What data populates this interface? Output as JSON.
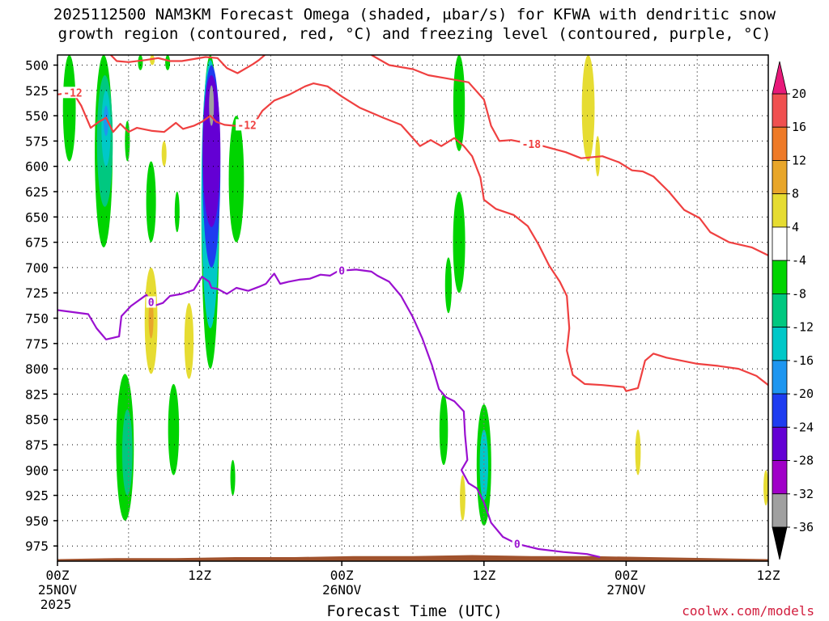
{
  "title": {
    "line1": "2025112500 NAM3KM Forecast Omega (shaded, μbar/s) for KFWA with dendritic snow",
    "line2": "growth region (contoured, red, °C) and freezing level (contoured, purple, °C)"
  },
  "xlabel": "Forecast Time (UTC)",
  "credit": "coolwx.com/models",
  "chart_data": {
    "type": "time-height contour",
    "title": "2025112500 NAM3KM Forecast Omega (shaded, μbar/s) for KFWA with dendritic snow growth region (contoured, red, °C) and freezing level (contoured, purple, °C)",
    "xlabel": "Forecast Time (UTC)",
    "ylabel": "",
    "x_range_hours": [
      0,
      60
    ],
    "y_range_mb": [
      990,
      490
    ],
    "y_axis": "pressure (inverted)",
    "grid": true,
    "y_ticks": [
      500,
      525,
      550,
      575,
      600,
      625,
      650,
      675,
      700,
      725,
      750,
      775,
      800,
      825,
      850,
      875,
      900,
      925,
      950,
      975
    ],
    "x_ticks": [
      {
        "hour": 0,
        "label": "00Z",
        "sub1": "25NOV",
        "sub2": "2025"
      },
      {
        "hour": 12,
        "label": "12Z",
        "sub1": "",
        "sub2": ""
      },
      {
        "hour": 24,
        "label": "00Z",
        "sub1": "26NOV",
        "sub2": ""
      },
      {
        "hour": 36,
        "label": "12Z",
        "sub1": "",
        "sub2": ""
      },
      {
        "hour": 48,
        "label": "00Z",
        "sub1": "27NOV",
        "sub2": ""
      },
      {
        "hour": 60,
        "label": "12Z",
        "sub1": "",
        "sub2": ""
      }
    ],
    "colorbar": {
      "labels": [
        "20",
        "16",
        "12",
        "8",
        "4",
        "-4",
        "-8",
        "-12",
        "-16",
        "-20",
        "-24",
        "-28",
        "-32",
        "-36"
      ],
      "bins": [
        {
          "from": 20,
          "to": 24,
          "color": "#e8197a"
        },
        {
          "from": 16,
          "to": 20,
          "color": "#f05050"
        },
        {
          "from": 12,
          "to": 16,
          "color": "#ee7a28"
        },
        {
          "from": 8,
          "to": 12,
          "color": "#e8a62a"
        },
        {
          "from": 4,
          "to": 8,
          "color": "#e6dc32"
        },
        {
          "from": -4,
          "to": 4,
          "color": "#ffffff"
        },
        {
          "from": -8,
          "to": -4,
          "color": "#00d400"
        },
        {
          "from": -12,
          "to": -8,
          "color": "#00c880"
        },
        {
          "from": -16,
          "to": -12,
          "color": "#00c8c8"
        },
        {
          "from": -20,
          "to": -16,
          "color": "#1e96f0"
        },
        {
          "from": -24,
          "to": -20,
          "color": "#1e3cf0"
        },
        {
          "from": -28,
          "to": -24,
          "color": "#6400d4"
        },
        {
          "from": -32,
          "to": -28,
          "color": "#a000c8"
        },
        {
          "from": -36,
          "to": -32,
          "color": "#a0a0a0"
        },
        {
          "from": -40,
          "to": -36,
          "color": "#000000"
        }
      ]
    },
    "shaded_omega": [
      {
        "color": "#00d400",
        "hour": 1.0,
        "top": 490,
        "bottom": 595
      },
      {
        "color": "#00d400",
        "hour": 3.9,
        "top": 490,
        "bottom": 680
      },
      {
        "color": "#00c880",
        "hour": 4.0,
        "top": 510,
        "bottom": 640
      },
      {
        "color": "#00c8c8",
        "hour": 4.1,
        "top": 525,
        "bottom": 600
      },
      {
        "color": "#1e96f0",
        "hour": 4.1,
        "top": 540,
        "bottom": 570
      },
      {
        "color": "#00d400",
        "hour": 5.9,
        "top": 555,
        "bottom": 595
      },
      {
        "color": "#00d400",
        "hour": 7.0,
        "top": 490,
        "bottom": 505
      },
      {
        "color": "#00d400",
        "hour": 7.9,
        "top": 595,
        "bottom": 675
      },
      {
        "color": "#00d400",
        "hour": 9.3,
        "top": 490,
        "bottom": 505
      },
      {
        "color": "#e6dc32",
        "hour": 8.0,
        "top": 490,
        "bottom": 500
      },
      {
        "color": "#e6dc32",
        "hour": 9.0,
        "top": 575,
        "bottom": 600
      },
      {
        "color": "#00d400",
        "hour": 10.1,
        "top": 625,
        "bottom": 665
      },
      {
        "color": "#00d400",
        "hour": 12.9,
        "top": 490,
        "bottom": 800
      },
      {
        "color": "#00c8c8",
        "hour": 12.9,
        "top": 495,
        "bottom": 760
      },
      {
        "color": "#1e3cf0",
        "hour": 13.0,
        "top": 500,
        "bottom": 700
      },
      {
        "color": "#6400d4",
        "hour": 13.0,
        "top": 510,
        "bottom": 660
      },
      {
        "color": "#a0a0a0",
        "hour": 13.0,
        "top": 520,
        "bottom": 560
      },
      {
        "color": "#00d400",
        "hour": 15.1,
        "top": 550,
        "bottom": 675
      },
      {
        "color": "#00d400",
        "hour": 14.8,
        "top": 890,
        "bottom": 925
      },
      {
        "color": "#e6dc32",
        "hour": 7.9,
        "top": 700,
        "bottom": 805
      },
      {
        "color": "#e8a62a",
        "hour": 7.9,
        "top": 730,
        "bottom": 770
      },
      {
        "color": "#e6dc32",
        "hour": 11.1,
        "top": 735,
        "bottom": 810
      },
      {
        "color": "#00d400",
        "hour": 5.7,
        "top": 805,
        "bottom": 950
      },
      {
        "color": "#00c880",
        "hour": 5.9,
        "top": 840,
        "bottom": 925
      },
      {
        "color": "#00d400",
        "hour": 9.8,
        "top": 815,
        "bottom": 905
      },
      {
        "color": "#00d400",
        "hour": 32.6,
        "top": 825,
        "bottom": 895
      },
      {
        "color": "#00d400",
        "hour": 33.9,
        "top": 490,
        "bottom": 585
      },
      {
        "color": "#00d400",
        "hour": 33.9,
        "top": 625,
        "bottom": 725
      },
      {
        "color": "#00d400",
        "hour": 33.0,
        "top": 690,
        "bottom": 745
      },
      {
        "color": "#e6dc32",
        "hour": 34.2,
        "top": 905,
        "bottom": 950
      },
      {
        "color": "#00d400",
        "hour": 36.0,
        "top": 835,
        "bottom": 955
      },
      {
        "color": "#00c8c8",
        "hour": 36.0,
        "top": 860,
        "bottom": 930
      },
      {
        "color": "#e6dc32",
        "hour": 44.8,
        "top": 490,
        "bottom": 595
      },
      {
        "color": "#e6dc32",
        "hour": 45.6,
        "top": 570,
        "bottom": 610
      },
      {
        "color": "#e6dc32",
        "hour": 49.0,
        "top": 860,
        "bottom": 905
      },
      {
        "color": "#e6dc32",
        "hour": 59.8,
        "top": 900,
        "bottom": 935
      }
    ],
    "dgz_contours": [
      {
        "label": "-12",
        "color": "#ef4040",
        "points": [
          [
            0.0,
            529
          ],
          [
            1.3,
            527
          ],
          [
            2.0,
            540
          ],
          [
            2.8,
            562
          ],
          [
            3.5,
            556
          ],
          [
            4.1,
            552
          ],
          [
            4.7,
            566
          ],
          [
            5.3,
            558
          ],
          [
            6.0,
            566
          ],
          [
            6.7,
            562
          ],
          [
            8.0,
            565
          ],
          [
            9.0,
            566
          ],
          [
            10.0,
            557
          ],
          [
            10.6,
            563
          ],
          [
            11.5,
            560
          ],
          [
            12.2,
            556
          ],
          [
            12.9,
            550
          ],
          [
            13.4,
            556
          ],
          [
            14.1,
            559
          ],
          [
            15.0,
            560
          ],
          [
            16.0,
            559
          ],
          [
            16.7,
            556
          ],
          [
            17.3,
            545
          ],
          [
            18.3,
            535
          ],
          [
            19.6,
            529
          ],
          [
            20.9,
            521
          ],
          [
            21.6,
            518
          ],
          [
            22.8,
            521
          ],
          [
            24.0,
            531
          ],
          [
            25.5,
            542
          ],
          [
            27.5,
            552
          ],
          [
            29.0,
            559
          ],
          [
            30.6,
            580
          ],
          [
            31.5,
            574
          ],
          [
            32.4,
            580
          ],
          [
            33.5,
            572
          ],
          [
            34.3,
            580
          ],
          [
            35.0,
            590
          ],
          [
            35.7,
            611
          ],
          [
            36.0,
            633
          ],
          [
            37.0,
            642
          ],
          [
            38.5,
            648
          ],
          [
            39.7,
            659
          ],
          [
            40.6,
            677
          ],
          [
            41.5,
            698
          ],
          [
            42.4,
            714
          ],
          [
            43.0,
            728
          ],
          [
            43.2,
            760
          ],
          [
            43.0,
            782
          ],
          [
            43.5,
            806
          ],
          [
            44.5,
            815
          ],
          [
            46.0,
            816
          ],
          [
            47.8,
            818
          ],
          [
            48.0,
            822
          ],
          [
            49.0,
            819
          ],
          [
            49.2,
            810
          ],
          [
            49.6,
            792
          ],
          [
            50.3,
            785
          ],
          [
            51.4,
            789
          ],
          [
            54.0,
            795
          ],
          [
            55.7,
            797
          ],
          [
            57.5,
            800
          ],
          [
            59.0,
            807
          ],
          [
            60.0,
            816
          ]
        ]
      },
      {
        "label": "",
        "color": "#ef4040",
        "points": [
          [
            4.5,
            490
          ],
          [
            5.0,
            496
          ],
          [
            6.0,
            497
          ],
          [
            7.4,
            495
          ],
          [
            8.5,
            493
          ],
          [
            9.5,
            496
          ],
          [
            10.5,
            496
          ],
          [
            11.5,
            494
          ],
          [
            12.5,
            492
          ],
          [
            13.5,
            493
          ],
          [
            14.3,
            503
          ],
          [
            15.2,
            508
          ],
          [
            16.5,
            499
          ],
          [
            17.0,
            495
          ],
          [
            17.5,
            490
          ]
        ]
      },
      {
        "label": "-18",
        "color": "#ef4040",
        "points": [
          [
            26.5,
            490
          ],
          [
            28.0,
            500
          ],
          [
            30.0,
            504
          ],
          [
            31.3,
            510
          ],
          [
            32.8,
            513
          ],
          [
            34.7,
            517
          ],
          [
            36.0,
            534
          ],
          [
            36.6,
            560
          ],
          [
            37.3,
            575
          ],
          [
            38.3,
            574
          ],
          [
            40.0,
            578
          ],
          [
            41.0,
            580
          ],
          [
            42.9,
            586
          ],
          [
            44.2,
            592
          ],
          [
            46.0,
            590
          ],
          [
            47.4,
            596
          ],
          [
            48.5,
            604
          ],
          [
            49.4,
            605
          ],
          [
            50.3,
            610
          ],
          [
            51.6,
            625
          ],
          [
            52.9,
            643
          ],
          [
            54.2,
            651
          ],
          [
            55.1,
            665
          ],
          [
            56.7,
            675
          ],
          [
            58.6,
            680
          ],
          [
            60.0,
            688
          ]
        ]
      }
    ],
    "freezing_level": {
      "label": "0",
      "color": "#9a10d0",
      "points": [
        [
          0.0,
          742
        ],
        [
          1.3,
          744
        ],
        [
          2.6,
          746
        ],
        [
          3.3,
          760
        ],
        [
          4.1,
          771
        ],
        [
          5.2,
          768
        ],
        [
          5.4,
          748
        ],
        [
          6.2,
          738
        ],
        [
          7.5,
          727
        ],
        [
          8.1,
          738
        ],
        [
          8.9,
          735
        ],
        [
          9.5,
          728
        ],
        [
          10.5,
          726
        ],
        [
          11.5,
          722
        ],
        [
          12.2,
          709
        ],
        [
          12.8,
          714
        ],
        [
          13.0,
          720
        ],
        [
          13.5,
          721
        ],
        [
          14.3,
          726
        ],
        [
          15.1,
          720
        ],
        [
          16.1,
          723
        ],
        [
          17.0,
          719
        ],
        [
          17.6,
          716
        ],
        [
          18.0,
          710
        ],
        [
          18.3,
          706
        ],
        [
          18.8,
          716
        ],
        [
          19.5,
          714
        ],
        [
          20.4,
          712
        ],
        [
          21.3,
          711
        ],
        [
          22.2,
          707
        ],
        [
          23.0,
          708
        ],
        [
          23.6,
          704
        ],
        [
          24.0,
          703
        ],
        [
          25.2,
          702
        ],
        [
          26.5,
          704
        ],
        [
          27.0,
          708
        ],
        [
          28.0,
          714
        ],
        [
          29.0,
          728
        ],
        [
          30.0,
          749
        ],
        [
          30.8,
          770
        ],
        [
          31.6,
          796
        ],
        [
          32.2,
          820
        ],
        [
          32.8,
          828
        ],
        [
          33.5,
          832
        ],
        [
          34.3,
          842
        ],
        [
          34.4,
          865
        ],
        [
          34.6,
          890
        ],
        [
          34.1,
          900
        ],
        [
          34.7,
          913
        ],
        [
          35.4,
          918
        ],
        [
          36.0,
          932
        ],
        [
          36.6,
          952
        ],
        [
          37.6,
          966
        ],
        [
          38.8,
          973
        ],
        [
          40.6,
          978
        ],
        [
          42.7,
          981
        ],
        [
          44.7,
          983
        ],
        [
          45.8,
          986
        ]
      ]
    },
    "terrain_surface_mb": [
      [
        0,
        988
      ],
      [
        5,
        987
      ],
      [
        10,
        987
      ],
      [
        15,
        986
      ],
      [
        20,
        986
      ],
      [
        25,
        985
      ],
      [
        30,
        985
      ],
      [
        35,
        984
      ],
      [
        40,
        985
      ],
      [
        45,
        985
      ],
      [
        50,
        986
      ],
      [
        55,
        987
      ],
      [
        60,
        988
      ]
    ]
  }
}
